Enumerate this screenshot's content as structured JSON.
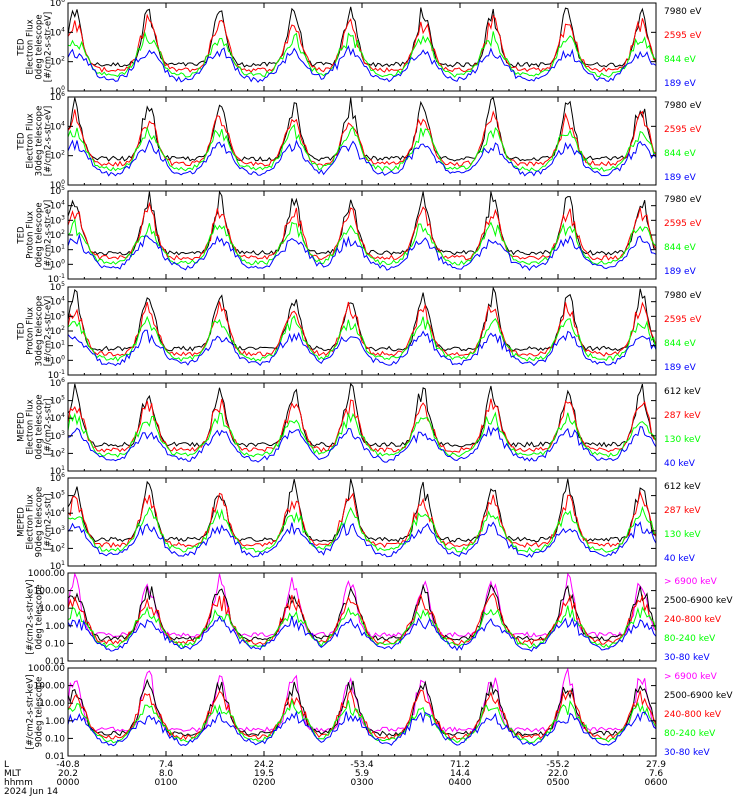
{
  "colors": {
    "black": "#000000",
    "blue": "#0000ff",
    "red": "#ff0000",
    "green": "#00ff00",
    "magenta": "#ff00ff",
    "axis": "#000000"
  },
  "footer": {
    "row_labels": [
      "L",
      "MLT",
      "hhmm",
      "2024 Jun 14"
    ],
    "ticks": [
      {
        "L": "-40.8",
        "MLT": "20.2",
        "hhmm": "0000"
      },
      {
        "L": "7.4",
        "MLT": "8.0",
        "hhmm": "0100"
      },
      {
        "L": "24.2",
        "MLT": "19.5",
        "hhmm": "0200"
      },
      {
        "L": "-53.4",
        "MLT": "5.9",
        "hhmm": "0300"
      },
      {
        "L": "71.2",
        "MLT": "14.4",
        "hhmm": "0400"
      },
      {
        "L": "-55.2",
        "MLT": "22.0",
        "hhmm": "0500"
      },
      {
        "L": "27.9",
        "MLT": "7.6",
        "hhmm": "0600"
      }
    ]
  },
  "chart_data": [
    {
      "type": "line",
      "ylabel": [
        "TED",
        "Electron Flux",
        "0deg telescope",
        "[#/cm2-s-str-eV]"
      ],
      "yscale": "log",
      "ylim_exp": [
        0,
        6
      ],
      "ytick_labels": [
        "10^0",
        "10^2",
        "10^4",
        "10^6"
      ],
      "xlim_hours": [
        0,
        6
      ],
      "series": [
        {
          "name": "7980 eV",
          "color": "black"
        },
        {
          "name": "2595 eV",
          "color": "red"
        },
        {
          "name": "844 eV",
          "color": "green"
        },
        {
          "name": "189 eV",
          "color": "blue"
        }
      ]
    },
    {
      "type": "line",
      "ylabel": [
        "TED",
        "Electron Flux",
        "30deg telescope",
        "[#/cm2-s-str-eV]"
      ],
      "yscale": "log",
      "ylim_exp": [
        0,
        6
      ],
      "ytick_labels": [
        "10^0",
        "10^2",
        "10^4",
        "10^6"
      ],
      "xlim_hours": [
        0,
        6
      ],
      "series": [
        {
          "name": "7980 eV",
          "color": "black"
        },
        {
          "name": "2595 eV",
          "color": "red"
        },
        {
          "name": "844 eV",
          "color": "green"
        },
        {
          "name": "189 eV",
          "color": "blue"
        }
      ]
    },
    {
      "type": "line",
      "ylabel": [
        "TED",
        "Proton Flux",
        "0deg telescope",
        "[#/cm2-s-str-eV]"
      ],
      "yscale": "log",
      "ylim_exp": [
        -1,
        5
      ],
      "ytick_labels": [
        "10^-1",
        "10^0",
        "10^1",
        "10^2",
        "10^3",
        "10^4",
        "10^5"
      ],
      "xlim_hours": [
        0,
        6
      ],
      "series": [
        {
          "name": "7980 eV",
          "color": "black"
        },
        {
          "name": "2595 eV",
          "color": "red"
        },
        {
          "name": "844 eV",
          "color": "green"
        },
        {
          "name": "189 eV",
          "color": "blue"
        }
      ]
    },
    {
      "type": "line",
      "ylabel": [
        "TED",
        "Proton Flux",
        "30deg telescope",
        "[#/cm2-s-str-eV]"
      ],
      "yscale": "log",
      "ylim_exp": [
        -1,
        5
      ],
      "ytick_labels": [
        "10^-1",
        "10^0",
        "10^1",
        "10^2",
        "10^3",
        "10^4",
        "10^5"
      ],
      "xlim_hours": [
        0,
        6
      ],
      "series": [
        {
          "name": "7980 eV",
          "color": "black"
        },
        {
          "name": "2595 eV",
          "color": "red"
        },
        {
          "name": "844 eV",
          "color": "green"
        },
        {
          "name": "189 eV",
          "color": "blue"
        }
      ]
    },
    {
      "type": "line",
      "ylabel": [
        "MEPED",
        "Electron Flux",
        "0deg telescope",
        "[#/cm2-s-str]"
      ],
      "yscale": "log",
      "ylim_exp": [
        1,
        6
      ],
      "ytick_labels": [
        "10^1",
        "10^2",
        "10^3",
        "10^4",
        "10^5",
        "10^6"
      ],
      "xlim_hours": [
        0,
        6
      ],
      "series": [
        {
          "name": "612 keV",
          "color": "black"
        },
        {
          "name": "287 keV",
          "color": "red"
        },
        {
          "name": "130 keV",
          "color": "green"
        },
        {
          "name": "40 keV",
          "color": "blue"
        }
      ]
    },
    {
      "type": "line",
      "ylabel": [
        "MEPED",
        "Electron Flux",
        "90deg telescope",
        "[#/cm2-s-str]"
      ],
      "yscale": "log",
      "ylim_exp": [
        1,
        6
      ],
      "ytick_labels": [
        "10^1",
        "10^2",
        "10^3",
        "10^4",
        "10^5",
        "10^6"
      ],
      "xlim_hours": [
        0,
        6
      ],
      "series": [
        {
          "name": "612 keV",
          "color": "black"
        },
        {
          "name": "287 keV",
          "color": "red"
        },
        {
          "name": "130 keV",
          "color": "green"
        },
        {
          "name": "40 keV",
          "color": "blue"
        }
      ]
    },
    {
      "type": "line",
      "ylabel": [
        "[#/cm2-s-str-keV]",
        "0deg telescope"
      ],
      "yscale": "log",
      "ylim_exp": [
        -2,
        3
      ],
      "ytick_labels": [
        "0.01",
        "0.10",
        "1.00",
        "10.00",
        "100.00",
        "1000.00"
      ],
      "xlim_hours": [
        0,
        6
      ],
      "series": [
        {
          "name": "> 6900 keV",
          "color": "magenta"
        },
        {
          "name": "2500-6900 keV",
          "color": "black"
        },
        {
          "name": "240-800 keV",
          "color": "red"
        },
        {
          "name": "80-240 keV",
          "color": "green"
        },
        {
          "name": "30-80 keV",
          "color": "blue"
        }
      ]
    },
    {
      "type": "line",
      "ylabel": [
        "[#/cm2-s-str-keV]",
        "90deg telescope"
      ],
      "yscale": "log",
      "ylim_exp": [
        -2,
        3
      ],
      "ytick_labels": [
        "0.01",
        "0.10",
        "1.00",
        "10.00",
        "100.00",
        "1000.00"
      ],
      "xlim_hours": [
        0,
        6
      ],
      "series": [
        {
          "name": "> 6900 keV",
          "color": "magenta"
        },
        {
          "name": "2500-6900 keV",
          "color": "black"
        },
        {
          "name": "240-800 keV",
          "color": "red"
        },
        {
          "name": "80-240 keV",
          "color": "green"
        },
        {
          "name": "30-80 keV",
          "color": "blue"
        }
      ]
    }
  ]
}
